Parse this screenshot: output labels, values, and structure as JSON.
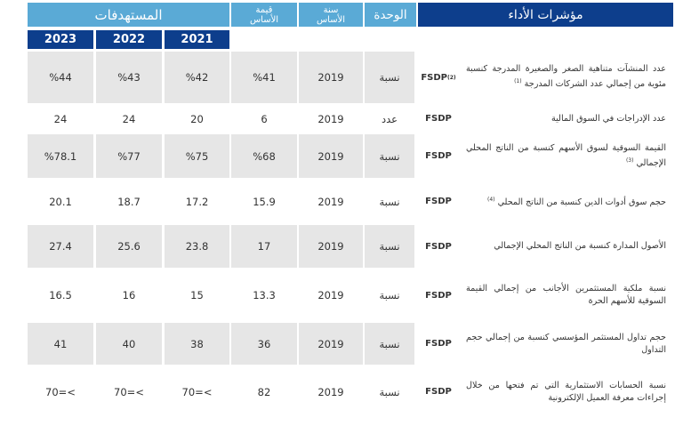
{
  "header": {
    "indicators": "مؤشرات الأداء",
    "unit": "الوحدة",
    "base_year": "سنة الأساس",
    "base_value": "قيمة الأساس",
    "targets": "المستهدفات",
    "years": [
      "2021",
      "2022",
      "2023"
    ]
  },
  "rows": [
    {
      "indicator": "عدد المنشآت متناهية الصغر والصغيرة المدرجة كنسبة مئوية من إجمالي عدد الشركات المدرجة",
      "note": "(1)",
      "owner": "FSDP",
      "owner_note": "(2)",
      "unit": "نسبة",
      "base_year": "2019",
      "base_value": "%41",
      "t2021": "%42",
      "t2022": "%43",
      "t2023": "%44"
    },
    {
      "indicator": "عدد الإدراجات في السوق المالية",
      "note": "",
      "owner": "FSDP",
      "owner_note": "",
      "unit": "عدد",
      "base_year": "2019",
      "base_value": "6",
      "t2021": "20",
      "t2022": "24",
      "t2023": "24"
    },
    {
      "indicator": "القيمة السوقية لسوق الأسهم كنسبة من الناتج المحلي الإجمالي",
      "note": "(3)",
      "owner": "FSDP",
      "owner_note": "",
      "unit": "نسبة",
      "base_year": "2019",
      "base_value": "%68",
      "t2021": "%75",
      "t2022": "%77",
      "t2023": "%78.1"
    },
    {
      "indicator": "حجم سوق أدوات الدين كنسبة من الناتج المحلي",
      "note": "(4)",
      "owner": "FSDP",
      "owner_note": "",
      "unit": "نسبة",
      "base_year": "2019",
      "base_value": "15.9",
      "t2021": "17.2",
      "t2022": "18.7",
      "t2023": "20.1"
    },
    {
      "indicator": "الأصول المدارة كنسبة من الناتج المحلي الإجمالي",
      "note": "",
      "owner": "FSDP",
      "owner_note": "",
      "unit": "نسبة",
      "base_year": "2019",
      "base_value": "17",
      "t2021": "23.8",
      "t2022": "25.6",
      "t2023": "27.4"
    },
    {
      "indicator": "نسبة ملكية المستثمرين الأجانب من إجمالي القيمة السوقية للأسهم الحرة",
      "note": "",
      "owner": "FSDP",
      "owner_note": "",
      "unit": "نسبة",
      "base_year": "2019",
      "base_value": "13.3",
      "t2021": "15",
      "t2022": "16",
      "t2023": "16.5"
    },
    {
      "indicator": "حجم تداول المستثمر المؤسسي كنسبة من إجمالي حجم التداول",
      "note": "",
      "owner": "FSDP",
      "owner_note": "",
      "unit": "نسبة",
      "base_year": "2019",
      "base_value": "36",
      "t2021": "38",
      "t2022": "40",
      "t2023": "41"
    },
    {
      "indicator": "نسبة الحسابات الاستثمارية التي تم فتحها من خلال إجراءات معرفة العميل الإلكترونية",
      "note": "",
      "owner": "FSDP",
      "owner_note": "",
      "unit": "نسبة",
      "base_year": "2019",
      "base_value": "82",
      "t2021": "70=<",
      "t2022": "70=<",
      "t2023": "70=<"
    }
  ],
  "colors": {
    "header_light": "#5aaad6",
    "header_dark": "#0d3e8c",
    "row_gray": "#e6e6e6",
    "row_white": "#ffffff",
    "text": "#333333"
  }
}
